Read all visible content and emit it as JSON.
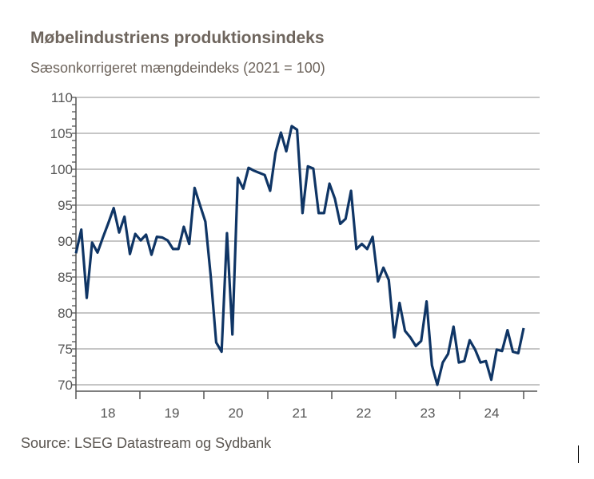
{
  "chart_data": {
    "type": "line",
    "title": "Møbelindustriens produktionsindeks",
    "subtitle": "Sæsonkorrigeret mængdeindeks (2021 = 100)",
    "source": "Source: LSEG Datastream og Sydbank",
    "xlabel": "",
    "ylabel": "",
    "ylim": [
      70,
      110
    ],
    "yticks": [
      "110",
      "105",
      "100",
      "95",
      "90",
      "85",
      "80",
      "75",
      "70"
    ],
    "xticks": [
      "18",
      "19",
      "20",
      "21",
      "22",
      "23",
      "24"
    ],
    "x_start": "2018-01",
    "x_end": "2024-12",
    "frequency": "monthly",
    "grid": true,
    "line_color": "#0f3565",
    "series": [
      {
        "values": [
          88.3,
          91.6,
          82.1,
          89.8,
          88.4,
          90.5,
          92.5,
          94.6,
          91.2,
          93.4,
          88.2,
          91.0,
          90.1,
          90.9,
          88.1,
          90.6,
          90.5,
          90.1,
          88.9,
          88.9,
          92.0,
          89.6,
          97.4,
          95.0,
          92.7,
          85.0,
          75.9,
          74.6,
          91.1,
          77.0,
          98.8,
          97.3,
          100.2,
          99.8,
          99.5,
          99.2,
          97.0,
          102.3,
          105.1,
          102.5,
          106.0,
          105.5,
          93.9,
          100.4,
          100.1,
          93.9,
          93.9,
          98.0,
          95.9,
          92.4,
          93.1,
          97.0,
          88.9,
          89.6,
          88.9,
          90.6,
          84.4,
          86.3,
          84.6,
          76.6,
          81.4,
          77.5,
          76.6,
          75.4,
          76.1,
          81.6,
          72.7,
          70.0,
          73.1,
          74.3,
          78.1,
          73.1,
          73.3,
          76.2,
          74.9,
          73.1,
          73.3,
          70.7,
          74.9,
          74.7,
          77.6,
          74.6,
          74.4,
          77.9
        ]
      }
    ]
  }
}
